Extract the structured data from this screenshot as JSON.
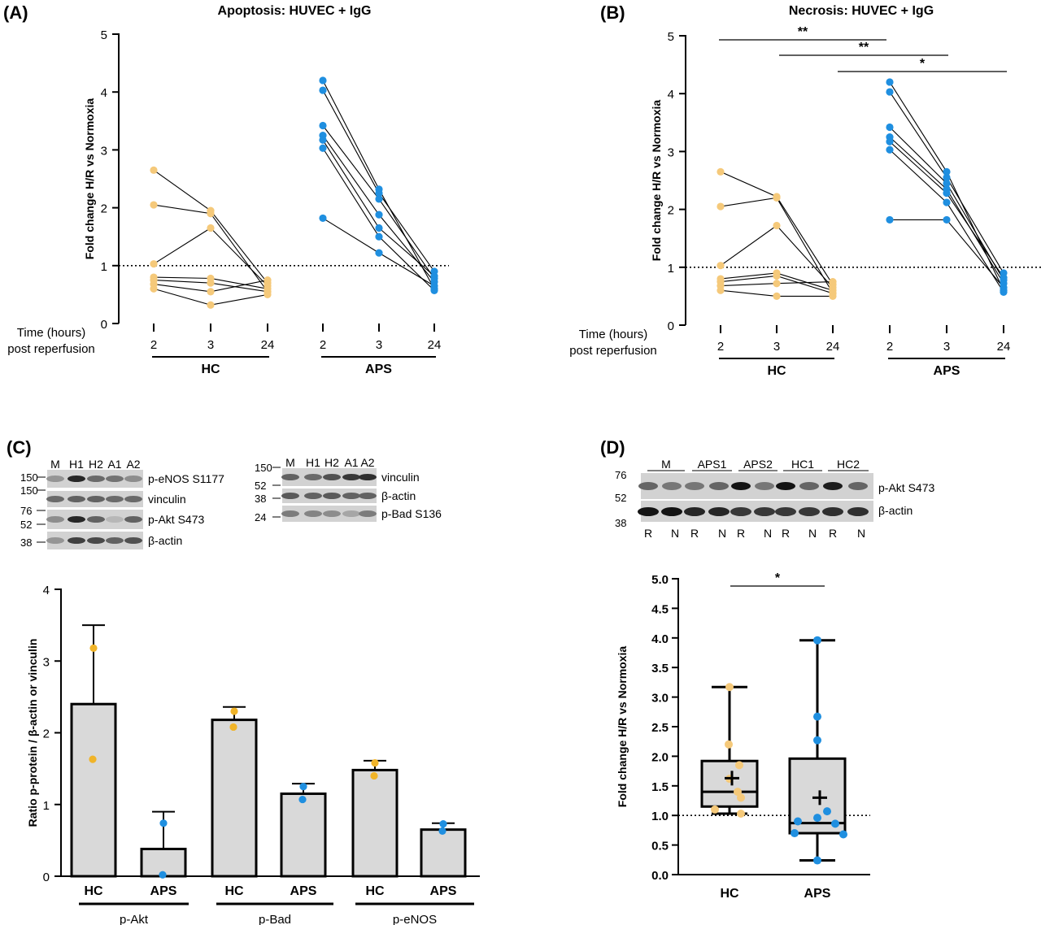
{
  "panels": {
    "a": {
      "letter": "(A)",
      "title": "Apoptosis: HUVEC + IgG"
    },
    "b": {
      "letter": "(B)",
      "title": "Necrosis: HUVEC + IgG"
    },
    "c": {
      "letter": "(C)"
    },
    "d": {
      "letter": "(D)"
    }
  },
  "time_label": [
    "Time (hours)",
    "post reperfusion"
  ],
  "groups": {
    "hc": "HC",
    "aps": "APS"
  },
  "colors": {
    "hc": "#f5c97a",
    "aps": "#1f8fe0",
    "hc_c": "#f0b429",
    "bar": "#d9d9d9"
  },
  "blots": {
    "c1": {
      "lanes": [
        "M",
        "H1",
        "H2",
        "A1",
        "A2"
      ],
      "mw": [
        "150",
        "150",
        "76",
        "52",
        "38"
      ],
      "bands": [
        "p-eNOS S1177",
        "vinculin",
        "p-Akt S473",
        "β-actin"
      ]
    },
    "c2": {
      "lanes": [
        "M",
        "H1",
        "H2",
        "A1",
        "A2"
      ],
      "mw": [
        "150",
        "52",
        "38",
        "24"
      ],
      "bands": [
        "vinculin",
        "β-actin",
        "p-Bad S136"
      ]
    },
    "d": {
      "groups": [
        "M",
        "APS1",
        "APS2",
        "HC1",
        "HC2"
      ],
      "rn": [
        "R",
        "N",
        "R",
        "N",
        "R",
        "N",
        "R",
        "N",
        "R",
        "N"
      ],
      "mw": [
        "76",
        "52",
        "38"
      ],
      "bands": [
        "p-Akt S473",
        "β-actin"
      ]
    }
  },
  "chart_data": [
    {
      "id": "A",
      "type": "line",
      "title": "Apoptosis: HUVEC + IgG",
      "ylabel": "Fold change H/R vs Normoxia",
      "xlabel": "Time (hours) post reperfusion",
      "ylim": [
        0,
        5
      ],
      "yticks": [
        "0",
        "1",
        "2",
        "3",
        "4",
        "5"
      ],
      "x": [
        "2",
        "3",
        "24",
        "2",
        "3",
        "24"
      ],
      "reference_line": 1,
      "series_hc": [
        [
          2.65,
          1.95,
          0.7
        ],
        [
          2.05,
          1.9,
          0.55
        ],
        [
          1.03,
          1.65,
          0.65
        ],
        [
          0.8,
          0.78,
          0.6
        ],
        [
          0.75,
          0.7,
          0.55
        ],
        [
          0.68,
          0.55,
          0.75
        ],
        [
          0.6,
          0.32,
          0.5
        ]
      ],
      "series_aps": [
        [
          4.2,
          2.32,
          0.6
        ],
        [
          4.03,
          2.25,
          0.9
        ],
        [
          3.42,
          2.15,
          0.78
        ],
        [
          3.25,
          1.88,
          0.72
        ],
        [
          3.17,
          1.65,
          0.82
        ],
        [
          3.03,
          1.5,
          0.57
        ],
        [
          1.82,
          1.22,
          0.65
        ]
      ]
    },
    {
      "id": "B",
      "type": "line",
      "title": "Necrosis: HUVEC + IgG",
      "ylabel": "Fold change H/R vs Normoxia",
      "xlabel": "Time (hours) post reperfusion",
      "ylim": [
        0,
        5
      ],
      "yticks": [
        "0",
        "1",
        "2",
        "3",
        "4",
        "5"
      ],
      "x": [
        "2",
        "3",
        "24",
        "2",
        "3",
        "24"
      ],
      "reference_line": 1,
      "significance": [
        "**",
        "**",
        "*"
      ],
      "series_hc": [
        [
          2.65,
          2.22,
          0.7
        ],
        [
          2.05,
          2.2,
          0.55
        ],
        [
          1.03,
          1.72,
          0.65
        ],
        [
          0.8,
          0.9,
          0.6
        ],
        [
          0.75,
          0.85,
          0.55
        ],
        [
          0.68,
          0.72,
          0.75
        ],
        [
          0.6,
          0.5,
          0.5
        ]
      ],
      "series_aps": [
        [
          4.2,
          2.65,
          0.6
        ],
        [
          4.03,
          2.55,
          0.9
        ],
        [
          3.42,
          2.45,
          0.78
        ],
        [
          3.25,
          2.35,
          0.72
        ],
        [
          3.17,
          2.28,
          0.82
        ],
        [
          3.03,
          2.12,
          0.57
        ],
        [
          1.82,
          1.82,
          0.65
        ]
      ]
    },
    {
      "id": "C",
      "type": "bar",
      "ylabel": "Ratio p-protein / β-actin or vinculin",
      "ylim": [
        0,
        4
      ],
      "yticks": [
        "0",
        "1",
        "2",
        "3",
        "4"
      ],
      "categories": [
        "HC",
        "APS",
        "HC",
        "APS",
        "HC",
        "APS"
      ],
      "proteins": [
        "p-Akt",
        "p-Bad",
        "p-eNOS"
      ],
      "values": [
        2.4,
        0.38,
        2.18,
        1.15,
        1.48,
        0.65
      ],
      "errors": [
        1.1,
        0.52,
        0.18,
        0.14,
        0.13,
        0.09
      ],
      "points": [
        [
          3.18,
          1.63
        ],
        [
          0.74,
          0.02
        ],
        [
          2.3,
          2.08
        ],
        [
          1.25,
          1.07
        ],
        [
          1.58,
          1.4
        ],
        [
          0.73,
          0.63
        ]
      ]
    },
    {
      "id": "D",
      "type": "box",
      "ylabel": "Fold change H/R vs Normoxia",
      "ylim": [
        0,
        5
      ],
      "yticks": [
        "0.0",
        "0.5",
        "1.0",
        "1.5",
        "2.0",
        "2.5",
        "3.0",
        "3.5",
        "4.0",
        "4.5",
        "5.0"
      ],
      "categories": [
        "HC",
        "APS"
      ],
      "significance": "*",
      "reference_line": 1,
      "boxes": [
        {
          "min": 1.03,
          "q1": 1.15,
          "median": 1.4,
          "q3": 1.92,
          "max": 3.17,
          "mean": 1.63
        },
        {
          "min": 0.24,
          "q1": 0.7,
          "median": 0.87,
          "q3": 1.96,
          "max": 3.96,
          "mean": 1.3
        }
      ],
      "points": [
        [
          3.17,
          2.2,
          1.85,
          1.62,
          1.4,
          1.3,
          1.1,
          1.03
        ],
        [
          3.96,
          2.67,
          2.27,
          1.07,
          0.96,
          0.9,
          0.86,
          0.7,
          0.68,
          0.24
        ]
      ]
    }
  ]
}
